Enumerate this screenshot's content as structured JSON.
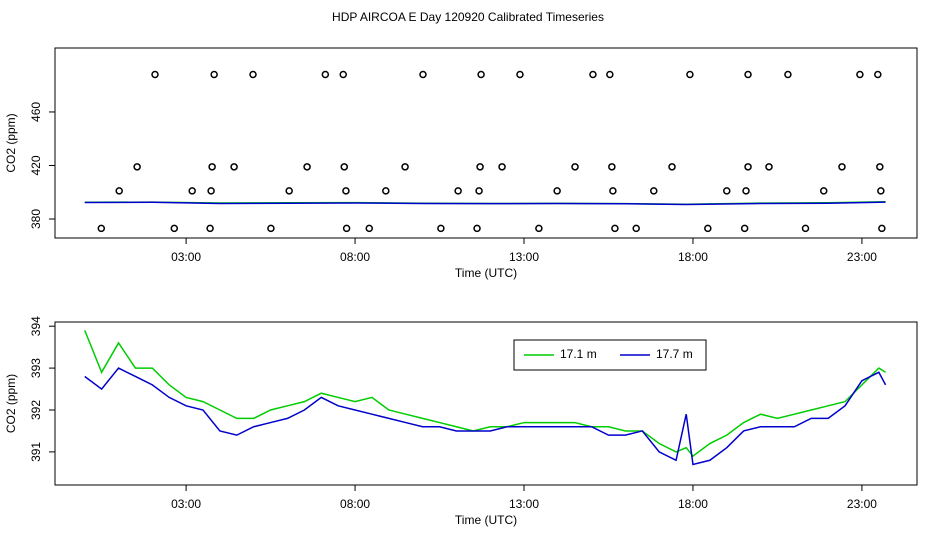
{
  "chart_data": [
    {
      "type": "scatter",
      "title": "HDP AIRCOA E  Day 120920  Calibrated Timeseries",
      "x_label": "Time (UTC)",
      "y_label": "CO2 (ppm)",
      "xlim": [
        -0.88,
        24.63
      ],
      "ylim": [
        365.8,
        507.8
      ],
      "xticks": [
        {
          "value": 3,
          "label": "03:00"
        },
        {
          "value": 8,
          "label": "08:00"
        },
        {
          "value": 13,
          "label": "13:00"
        },
        {
          "value": 18,
          "label": "18:00"
        },
        {
          "value": 23,
          "label": "23:00"
        }
      ],
      "yticks": [
        380,
        420,
        460
      ],
      "points": {
        "color": "#000000",
        "x": [
          2.08,
          3.83,
          4.98,
          7.12,
          7.65,
          10.01,
          11.73,
          12.88,
          15.04,
          15.54,
          17.91,
          19.63,
          20.81,
          22.94,
          23.47,
          1.55,
          3.77,
          4.42,
          6.58,
          7.68,
          9.48,
          11.7,
          12.35,
          14.51,
          15.6,
          17.38,
          19.63,
          20.25,
          22.41,
          23.53,
          1.02,
          3.18,
          3.74,
          6.05,
          7.73,
          8.91,
          11.05,
          11.67,
          13.98,
          15.63,
          16.84,
          19.0,
          19.57,
          21.87,
          23.56,
          0.49,
          2.65,
          3.71,
          5.51,
          7.75,
          8.42,
          10.54,
          11.61,
          13.44,
          15.69,
          16.32,
          18.44,
          19.53,
          21.33,
          23.59
        ],
        "values": [
          488,
          488,
          488,
          488,
          488,
          488,
          488,
          488,
          488,
          488,
          488,
          488,
          488,
          488,
          488,
          419,
          419,
          419,
          419,
          419,
          419,
          419,
          419,
          419,
          419,
          419,
          419,
          419,
          419,
          419,
          401,
          401,
          401,
          401,
          401,
          401,
          401,
          401,
          401,
          401,
          401,
          401,
          401,
          401,
          401,
          373,
          373,
          373,
          373,
          373,
          373,
          373,
          373,
          373,
          373,
          373,
          373,
          373,
          373,
          373
        ]
      },
      "x": [
        0,
        2,
        4,
        6,
        8,
        10,
        12,
        14,
        16,
        17.8,
        20,
        22,
        23.7
      ],
      "series": [
        {
          "color": "#00cc00",
          "values": [
            392.5,
            392.6,
            392.0,
            392.1,
            392.2,
            391.8,
            391.6,
            391.7,
            391.5,
            391.0,
            391.9,
            392.1,
            392.9
          ]
        },
        {
          "color": "#0000cc",
          "values": [
            392.3,
            392.5,
            391.6,
            391.8,
            392.0,
            391.6,
            391.5,
            391.6,
            391.4,
            390.8,
            391.6,
            391.8,
            392.6
          ]
        }
      ]
    },
    {
      "type": "line",
      "x_label": "Time (UTC)",
      "y_label": "CO2 (ppm)",
      "xlim": [
        -0.88,
        24.63
      ],
      "ylim": [
        390.21,
        394.1
      ],
      "xticks": [
        {
          "value": 3,
          "label": "03:00"
        },
        {
          "value": 8,
          "label": "08:00"
        },
        {
          "value": 13,
          "label": "13:00"
        },
        {
          "value": 18,
          "label": "18:00"
        },
        {
          "value": 23,
          "label": "23:00"
        }
      ],
      "yticks": [
        391,
        392,
        393,
        394
      ],
      "legend": "top-center",
      "x": [
        0,
        0.5,
        1,
        1.5,
        2,
        2.5,
        3,
        3.5,
        4,
        4.5,
        5,
        5.5,
        6,
        6.5,
        7,
        7.5,
        8,
        8.5,
        9,
        9.5,
        10,
        10.5,
        11,
        11.5,
        12,
        12.5,
        13,
        13.5,
        14,
        14.5,
        15,
        15.5,
        16,
        16.5,
        17,
        17.5,
        17.8,
        18,
        18.5,
        19,
        19.5,
        20,
        20.5,
        21,
        21.5,
        22,
        22.5,
        23,
        23.5,
        23.7
      ],
      "series": [
        {
          "name": "17.1 m",
          "color": "#00cc00",
          "values": [
            393.9,
            392.9,
            393.6,
            393.0,
            393.0,
            392.6,
            392.3,
            392.2,
            392.0,
            391.8,
            391.8,
            392.0,
            392.1,
            392.2,
            392.4,
            392.3,
            392.2,
            392.3,
            392.0,
            391.9,
            391.8,
            391.7,
            391.6,
            391.5,
            391.6,
            391.6,
            391.7,
            391.7,
            391.7,
            391.7,
            391.6,
            391.6,
            391.5,
            391.5,
            391.2,
            391.0,
            391.1,
            390.9,
            391.2,
            391.4,
            391.7,
            391.9,
            391.8,
            391.9,
            392.0,
            392.1,
            392.2,
            392.6,
            393.0,
            392.9
          ]
        },
        {
          "name": "17.7 m",
          "color": "#0000cc",
          "values": [
            392.8,
            392.5,
            393.0,
            392.8,
            392.6,
            392.3,
            392.1,
            392.0,
            391.5,
            391.4,
            391.6,
            391.7,
            391.8,
            392.0,
            392.3,
            392.1,
            392.0,
            391.9,
            391.8,
            391.7,
            391.6,
            391.6,
            391.5,
            391.5,
            391.5,
            391.6,
            391.6,
            391.6,
            391.6,
            391.6,
            391.6,
            391.4,
            391.4,
            391.5,
            391.0,
            390.8,
            391.9,
            390.7,
            390.8,
            391.1,
            391.5,
            391.6,
            391.6,
            391.6,
            391.8,
            391.8,
            392.1,
            392.7,
            392.9,
            392.6
          ]
        }
      ]
    }
  ]
}
